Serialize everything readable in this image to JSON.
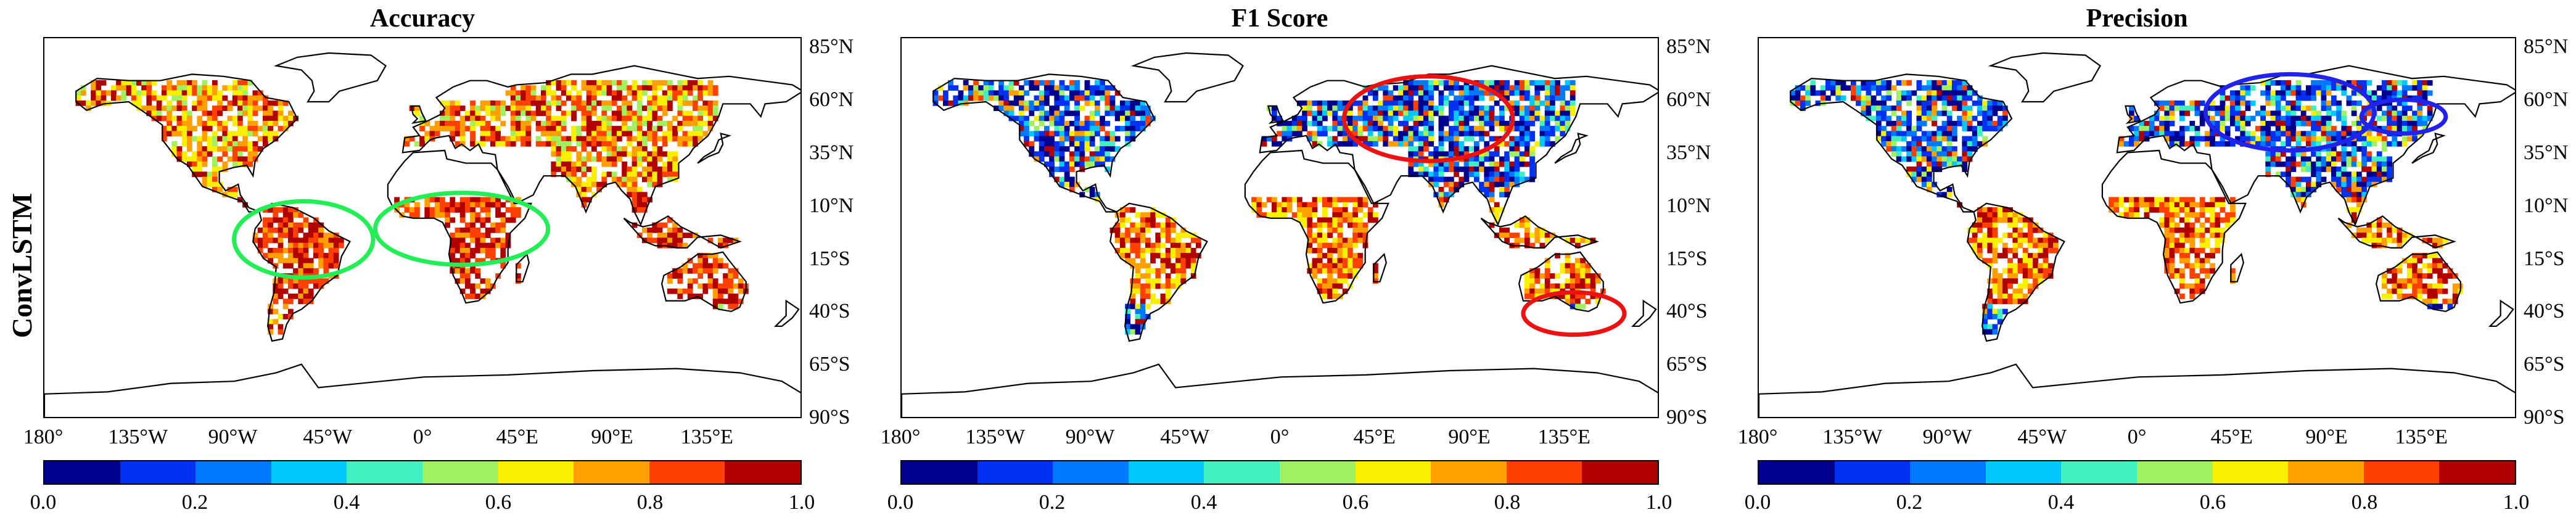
{
  "row_label": "ConvLSTM",
  "panels": [
    {
      "title": "Accuracy",
      "highlight_color": "#22ee55",
      "ellipse_count": 2
    },
    {
      "title": "F1 Score",
      "highlight_color": "#ee1111",
      "ellipse_count": 2
    },
    {
      "title": "Precision",
      "highlight_color": "#2222ee",
      "ellipse_count": 2
    }
  ],
  "lat_labels": [
    "85°N",
    "60°N",
    "35°N",
    "10°N",
    "15°S",
    "40°S",
    "65°S",
    "90°S"
  ],
  "lon_labels": [
    "180°",
    "135°W",
    "90°W",
    "45°W",
    "0°",
    "45°E",
    "90°E",
    "135°E"
  ],
  "colorbar": {
    "ticks": [
      "0.0",
      "0.2",
      "0.4",
      "0.6",
      "0.8",
      "1.0"
    ],
    "colors": [
      "#00008f",
      "#0030f0",
      "#0078ff",
      "#00c8ff",
      "#40f0c0",
      "#a0f060",
      "#f8f000",
      "#ffa000",
      "#ff4000",
      "#b00000"
    ]
  }
}
